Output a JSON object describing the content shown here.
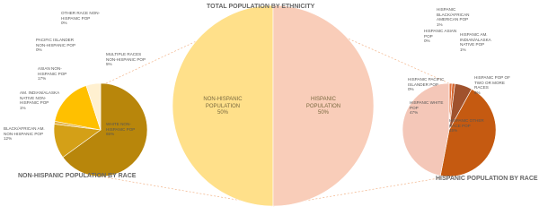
{
  "chart_data": [
    {
      "type": "pie",
      "title": "TOTAL POPULATION BY ETHNICITY",
      "categories": [
        "NON-HISPANIC POPULATION",
        "HISPANIC POPULATION"
      ],
      "values": [
        50,
        50
      ],
      "value_labels": [
        "50%",
        "50%"
      ],
      "colors": [
        "#ffe08a",
        "#f9cdb9"
      ]
    },
    {
      "type": "pie",
      "title": "NON-HISPANIC POPULATION BY RACE",
      "categories": [
        "WHITE NON-HISPANIC POP",
        "BLACK/AFRICAN AM. NON-HISPANIC POP",
        "AM. INDIAN/ALASKA NATIVE NON-HISPANIC POP",
        "ASIAN NON-HISPANIC POP",
        "PACIFIC ISLANDER NON-HISPANIC POP",
        "OTHER RACE NON-HISPANIC POP",
        "MULTIPLE RACES NON-HISPANIC POP"
      ],
      "values": [
        65,
        12,
        1,
        17,
        0,
        0,
        5
      ],
      "value_labels": [
        "65%",
        "12%",
        "1%",
        "17%",
        "0%",
        "0%",
        "5%"
      ],
      "colors": [
        "#b8860b",
        "#d4a017",
        "#e3b448",
        "#ffc000",
        "#ffd966",
        "#ffe699",
        "#fff0d0"
      ]
    },
    {
      "type": "pie",
      "title": "HISPANIC POPULATION BY RACE",
      "categories": [
        "HISPANIC BLACK/AFRICAN AMERICAN POP",
        "HISPANIC ASIAN POP",
        "HISPANIC AM. INDIAN/ALASKA NATIVE POP",
        "HISPANIC POP OF TWO OR MORE RACES",
        "HISPANIC OTHER RACE POP",
        "HISPANIC WHITE POP",
        "HISPANIC PACIFIC ISLANDER POP"
      ],
      "values": [
        1,
        0,
        1,
        6,
        45,
        47,
        0
      ],
      "value_labels": [
        "1%",
        "0%",
        "1%",
        "6%",
        "45%",
        "47%",
        "0%"
      ],
      "colors": [
        "#e2703a",
        "#f2a46f",
        "#d4622a",
        "#a0522d",
        "#c55a11",
        "#f4c7b8",
        "#f8d9c8"
      ]
    }
  ]
}
